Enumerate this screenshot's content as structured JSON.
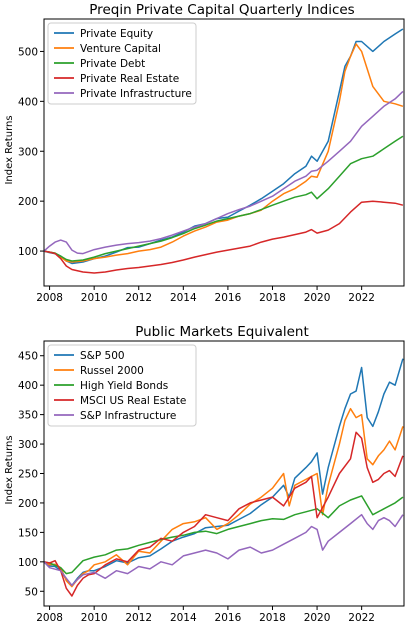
{
  "chart_data": [
    {
      "type": "line",
      "title": "Preqin Private Capital Quarterly Indices",
      "xlabel": "",
      "ylabel": "Index Returns",
      "xlim": [
        2007.75,
        2023.9
      ],
      "ylim": [
        30,
        565
      ],
      "xticks": [
        "2008",
        "2010",
        "2012",
        "2014",
        "2016",
        "2018",
        "2020",
        "2022"
      ],
      "yticks": [
        100,
        200,
        300,
        400,
        500
      ],
      "grid": false,
      "legend": "top-left",
      "series": [
        {
          "name": "Private Equity",
          "color": "#1f77b4",
          "x": [
            2007.75,
            2008,
            2008.25,
            2008.5,
            2008.75,
            2009,
            2009.5,
            2010,
            2010.5,
            2011,
            2011.5,
            2012,
            2012.5,
            2013,
            2013.5,
            2014,
            2014.5,
            2015,
            2015.5,
            2016,
            2016.5,
            2017,
            2017.5,
            2018,
            2018.5,
            2019,
            2019.5,
            2019.75,
            2020,
            2020.5,
            2021,
            2021.25,
            2021.5,
            2021.75,
            2022,
            2022.5,
            2023,
            2023.5,
            2023.85
          ],
          "y": [
            100,
            97,
            95,
            90,
            80,
            75,
            78,
            85,
            90,
            98,
            107,
            108,
            115,
            122,
            128,
            138,
            150,
            155,
            165,
            168,
            180,
            192,
            205,
            220,
            235,
            255,
            270,
            290,
            280,
            320,
            420,
            470,
            490,
            520,
            520,
            500,
            520,
            535,
            545
          ]
        },
        {
          "name": "Venture Capital",
          "color": "#ff7f0e",
          "x": [
            2007.75,
            2008,
            2008.25,
            2008.5,
            2008.75,
            2009,
            2009.5,
            2010,
            2010.5,
            2011,
            2011.5,
            2012,
            2012.5,
            2013,
            2013.5,
            2014,
            2014.5,
            2015,
            2015.5,
            2016,
            2016.5,
            2017,
            2017.5,
            2018,
            2018.5,
            2019,
            2019.5,
            2019.75,
            2020,
            2020.5,
            2021,
            2021.25,
            2021.5,
            2021.75,
            2022,
            2022.5,
            2023,
            2023.5,
            2023.85
          ],
          "y": [
            100,
            98,
            96,
            88,
            80,
            78,
            80,
            85,
            88,
            92,
            95,
            100,
            103,
            108,
            118,
            130,
            140,
            148,
            158,
            162,
            170,
            175,
            182,
            200,
            215,
            225,
            240,
            250,
            248,
            300,
            400,
            460,
            490,
            515,
            500,
            430,
            400,
            395,
            390
          ]
        },
        {
          "name": "Private Debt",
          "color": "#2ca02c",
          "x": [
            2007.75,
            2008,
            2008.25,
            2008.5,
            2008.75,
            2009,
            2009.5,
            2010,
            2010.5,
            2011,
            2011.5,
            2012,
            2012.5,
            2013,
            2013.5,
            2014,
            2014.5,
            2015,
            2015.5,
            2016,
            2016.5,
            2017,
            2017.5,
            2018,
            2018.5,
            2019,
            2019.5,
            2019.75,
            2020,
            2020.5,
            2021,
            2021.5,
            2022,
            2022.5,
            2023,
            2023.5,
            2023.85
          ],
          "y": [
            100,
            98,
            96,
            90,
            83,
            80,
            82,
            88,
            95,
            100,
            105,
            110,
            115,
            120,
            127,
            135,
            145,
            152,
            160,
            165,
            170,
            175,
            183,
            192,
            200,
            208,
            213,
            218,
            205,
            225,
            250,
            275,
            285,
            290,
            305,
            320,
            330
          ]
        },
        {
          "name": "Private Real Estate",
          "color": "#d62728",
          "x": [
            2007.75,
            2008,
            2008.25,
            2008.5,
            2008.75,
            2009,
            2009.5,
            2010,
            2010.5,
            2011,
            2011.5,
            2012,
            2012.5,
            2013,
            2013.5,
            2014,
            2014.5,
            2015,
            2015.5,
            2016,
            2016.5,
            2017,
            2017.5,
            2018,
            2018.5,
            2019,
            2019.5,
            2019.75,
            2020,
            2020.5,
            2021,
            2021.5,
            2022,
            2022.5,
            2023,
            2023.5,
            2023.85
          ],
          "y": [
            100,
            98,
            95,
            85,
            70,
            63,
            58,
            56,
            58,
            62,
            65,
            67,
            70,
            73,
            77,
            82,
            88,
            93,
            98,
            102,
            106,
            110,
            118,
            124,
            128,
            133,
            138,
            143,
            136,
            142,
            155,
            178,
            198,
            200,
            198,
            196,
            192
          ]
        },
        {
          "name": "Private Infrastructure",
          "color": "#9467bd",
          "x": [
            2007.75,
            2008,
            2008.25,
            2008.5,
            2008.75,
            2009,
            2009.25,
            2009.5,
            2010,
            2010.5,
            2011,
            2011.5,
            2012,
            2012.5,
            2013,
            2013.5,
            2014,
            2014.5,
            2015,
            2015.5,
            2016,
            2016.5,
            2017,
            2017.5,
            2018,
            2018.5,
            2019,
            2019.5,
            2019.75,
            2020,
            2020.5,
            2021,
            2021.5,
            2022,
            2022.5,
            2023,
            2023.5,
            2023.85
          ],
          "y": [
            100,
            110,
            118,
            122,
            118,
            102,
            96,
            95,
            103,
            108,
            112,
            115,
            117,
            120,
            125,
            132,
            140,
            148,
            155,
            165,
            175,
            183,
            190,
            200,
            210,
            225,
            240,
            250,
            260,
            262,
            280,
            300,
            320,
            350,
            370,
            390,
            405,
            420
          ]
        }
      ]
    },
    {
      "type": "line",
      "title": "Public Markets Equivalent",
      "xlabel": "",
      "ylabel": "Index Returns",
      "xlim": [
        2007.75,
        2023.9
      ],
      "ylim": [
        25,
        475
      ],
      "xticks": [
        "2008",
        "2010",
        "2012",
        "2014",
        "2016",
        "2018",
        "2020",
        "2022"
      ],
      "yticks": [
        50,
        100,
        150,
        200,
        250,
        300,
        350,
        400,
        450
      ],
      "grid": false,
      "legend": "top-left",
      "series": [
        {
          "name": "S&P 500",
          "color": "#1f77b4",
          "x": [
            2007.75,
            2008,
            2008.25,
            2008.5,
            2008.75,
            2009,
            2009.25,
            2009.5,
            2009.75,
            2010,
            2010.5,
            2011,
            2011.5,
            2012,
            2012.5,
            2013,
            2013.5,
            2014,
            2014.5,
            2015,
            2015.5,
            2016,
            2016.5,
            2017,
            2017.5,
            2018,
            2018.5,
            2018.75,
            2019,
            2019.5,
            2019.75,
            2020,
            2020.25,
            2020.5,
            2021,
            2021.25,
            2021.5,
            2021.75,
            2022,
            2022.25,
            2022.5,
            2022.75,
            2023,
            2023.25,
            2023.5,
            2023.85
          ],
          "y": [
            100,
            93,
            92,
            85,
            70,
            60,
            72,
            82,
            85,
            85,
            92,
            102,
            98,
            107,
            110,
            122,
            135,
            142,
            148,
            158,
            160,
            162,
            172,
            182,
            197,
            210,
            230,
            210,
            242,
            260,
            270,
            285,
            215,
            260,
            330,
            360,
            385,
            390,
            430,
            345,
            330,
            355,
            385,
            405,
            400,
            445
          ]
        },
        {
          "name": "Russel 2000",
          "color": "#ff7f0e",
          "x": [
            2007.75,
            2008,
            2008.25,
            2008.5,
            2008.75,
            2009,
            2009.25,
            2009.5,
            2009.75,
            2010,
            2010.5,
            2011,
            2011.5,
            2012,
            2012.5,
            2013,
            2013.5,
            2014,
            2014.5,
            2015,
            2015.5,
            2016,
            2016.5,
            2017,
            2017.5,
            2018,
            2018.5,
            2018.75,
            2019,
            2019.5,
            2019.75,
            2020,
            2020.25,
            2020.5,
            2021,
            2021.25,
            2021.5,
            2021.75,
            2022,
            2022.25,
            2022.5,
            2022.75,
            2023,
            2023.25,
            2023.5,
            2023.85
          ],
          "y": [
            100,
            95,
            96,
            90,
            68,
            58,
            70,
            80,
            85,
            95,
            100,
            112,
            95,
            118,
            115,
            135,
            155,
            165,
            168,
            175,
            155,
            165,
            180,
            198,
            210,
            225,
            250,
            195,
            230,
            240,
            245,
            250,
            180,
            230,
            300,
            340,
            360,
            345,
            350,
            275,
            265,
            280,
            290,
            305,
            290,
            330
          ]
        },
        {
          "name": "High Yield Bonds",
          "color": "#2ca02c",
          "x": [
            2007.75,
            2008,
            2008.5,
            2008.75,
            2009,
            2009.5,
            2010,
            2010.5,
            2011,
            2011.5,
            2012,
            2012.5,
            2013,
            2013.5,
            2014,
            2014.5,
            2015,
            2015.5,
            2016,
            2016.5,
            2017,
            2017.5,
            2018,
            2018.5,
            2019,
            2019.5,
            2020,
            2020.5,
            2021,
            2021.5,
            2022,
            2022.5,
            2023,
            2023.5,
            2023.85
          ],
          "y": [
            100,
            98,
            90,
            80,
            82,
            102,
            108,
            112,
            120,
            122,
            128,
            133,
            138,
            142,
            145,
            150,
            152,
            148,
            155,
            160,
            165,
            170,
            173,
            172,
            180,
            185,
            190,
            175,
            195,
            205,
            212,
            180,
            190,
            200,
            210
          ]
        },
        {
          "name": "MSCI US Real Estate",
          "color": "#d62728",
          "x": [
            2007.75,
            2008,
            2008.25,
            2008.5,
            2008.75,
            2009,
            2009.25,
            2009.5,
            2009.75,
            2010,
            2010.5,
            2011,
            2011.5,
            2012,
            2012.5,
            2013,
            2013.5,
            2014,
            2014.5,
            2015,
            2015.5,
            2016,
            2016.5,
            2017,
            2017.5,
            2018,
            2018.5,
            2019,
            2019.5,
            2019.75,
            2020,
            2020.5,
            2021,
            2021.5,
            2021.75,
            2022,
            2022.25,
            2022.5,
            2022.75,
            2023,
            2023.25,
            2023.5,
            2023.85
          ],
          "y": [
            100,
            98,
            102,
            85,
            55,
            42,
            60,
            72,
            78,
            80,
            95,
            105,
            100,
            120,
            125,
            140,
            135,
            150,
            160,
            180,
            175,
            170,
            190,
            200,
            205,
            210,
            195,
            225,
            235,
            245,
            175,
            210,
            250,
            275,
            320,
            310,
            260,
            235,
            240,
            250,
            255,
            245,
            280
          ]
        },
        {
          "name": "S&P Infrastructure",
          "color": "#9467bd",
          "x": [
            2007.75,
            2008,
            2008.5,
            2008.75,
            2009,
            2009.25,
            2009.5,
            2010,
            2010.5,
            2011,
            2011.5,
            2012,
            2012.5,
            2013,
            2013.5,
            2014,
            2014.5,
            2015,
            2015.5,
            2016,
            2016.5,
            2017,
            2017.5,
            2018,
            2018.5,
            2019,
            2019.5,
            2019.75,
            2020,
            2020.25,
            2020.5,
            2021,
            2021.5,
            2022,
            2022.25,
            2022.5,
            2022.75,
            2023,
            2023.25,
            2023.5,
            2023.85
          ],
          "y": [
            100,
            90,
            85,
            72,
            60,
            70,
            78,
            82,
            72,
            85,
            80,
            92,
            88,
            100,
            95,
            110,
            115,
            120,
            115,
            105,
            120,
            125,
            115,
            120,
            130,
            140,
            150,
            160,
            155,
            120,
            135,
            150,
            165,
            180,
            165,
            155,
            170,
            175,
            170,
            160,
            180
          ]
        }
      ]
    }
  ]
}
